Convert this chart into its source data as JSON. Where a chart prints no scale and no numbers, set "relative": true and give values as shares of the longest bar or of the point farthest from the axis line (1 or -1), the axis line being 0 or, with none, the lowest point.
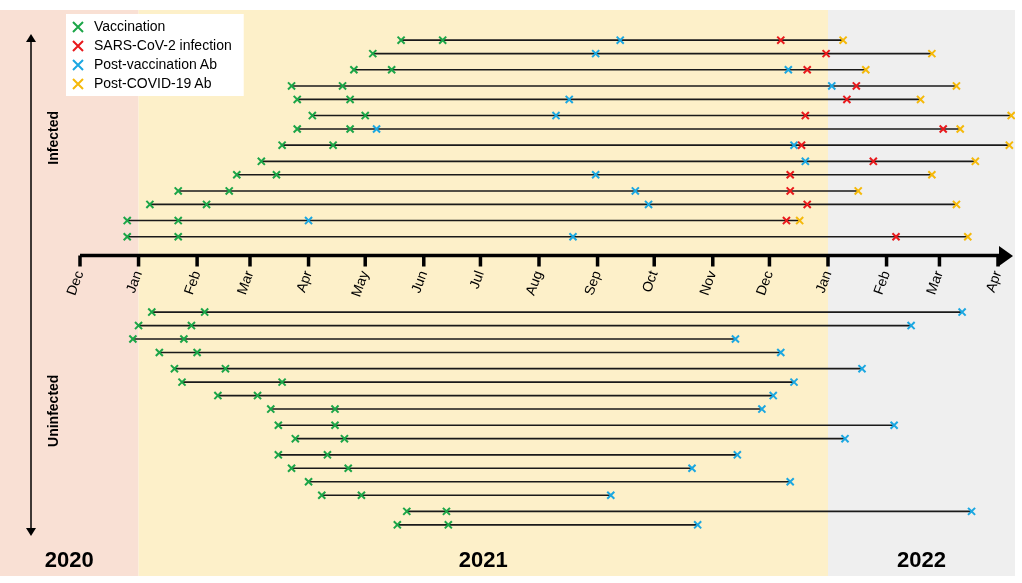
{
  "chart_data": {
    "type": "scatter",
    "relative": true,
    "legend": "top left",
    "annotations": [
      "Infected",
      "Uninfected"
    ],
    "xlim": [
      "2020-12-01",
      "2022-04-10"
    ],
    "xticks": [
      {
        "value": "2020-12-01",
        "label": "Dec"
      },
      {
        "value": "2021-01-01",
        "label": "Jan"
      },
      {
        "value": "2021-02-01",
        "label": "Feb"
      },
      {
        "value": "2021-03-01",
        "label": "Mar"
      },
      {
        "value": "2021-04-01",
        "label": "Apr"
      },
      {
        "value": "2021-05-01",
        "label": "May"
      },
      {
        "value": "2021-06-01",
        "label": "Jun"
      },
      {
        "value": "2021-07-01",
        "label": "Jul"
      },
      {
        "value": "2021-08-01",
        "label": "Aug"
      },
      {
        "value": "2021-09-01",
        "label": "Sep"
      },
      {
        "value": "2021-10-01",
        "label": "Oct"
      },
      {
        "value": "2021-11-01",
        "label": "Nov"
      },
      {
        "value": "2021-12-01",
        "label": "Dec"
      },
      {
        "value": "2022-01-01",
        "label": "Jan"
      },
      {
        "value": "2022-02-01",
        "label": "Feb"
      },
      {
        "value": "2022-03-01",
        "label": "Mar"
      },
      {
        "value": "2022-04-01",
        "label": "Apr"
      }
    ],
    "bands": [
      {
        "axis": "x",
        "from": "2020-12-01",
        "to": "2021-01-01",
        "label": "2020",
        "color": "#f9e0d4"
      },
      {
        "axis": "x",
        "from": "2021-01-01",
        "to": "2022-01-01",
        "label": "2021",
        "color": "#fdf0c9"
      },
      {
        "axis": "x",
        "from": "2022-01-01",
        "to": "2022-04-10",
        "label": "2022",
        "color": "#efefef"
      }
    ],
    "series": [
      {
        "type": "line",
        "color": "#1a1a1a",
        "marker": "none",
        "x": [
          "2021-05-20",
          "2022-01-09"
        ],
        "values": [
          0.8,
          0.8
        ]
      },
      {
        "type": "line",
        "color": "#1a1a1a",
        "marker": "none",
        "x": [
          "2021-05-05",
          "2022-02-25"
        ],
        "values": [
          0.75,
          0.75
        ]
      },
      {
        "type": "line",
        "color": "#1a1a1a",
        "marker": "none",
        "x": [
          "2021-04-25",
          "2022-01-21"
        ],
        "values": [
          0.69,
          0.69
        ]
      },
      {
        "type": "line",
        "color": "#1a1a1a",
        "marker": "none",
        "x": [
          "2021-03-23",
          "2022-03-10"
        ],
        "values": [
          0.63,
          0.63
        ]
      },
      {
        "type": "line",
        "color": "#1a1a1a",
        "marker": "none",
        "x": [
          "2021-03-26",
          "2022-02-19"
        ],
        "values": [
          0.58,
          0.58
        ]
      },
      {
        "type": "line",
        "color": "#1a1a1a",
        "marker": "none",
        "x": [
          "2021-04-03",
          "2022-04-08"
        ],
        "values": [
          0.52,
          0.52
        ]
      },
      {
        "type": "line",
        "color": "#1a1a1a",
        "marker": "none",
        "x": [
          "2021-03-26",
          "2022-03-12"
        ],
        "values": [
          0.47,
          0.47
        ]
      },
      {
        "type": "line",
        "color": "#1a1a1a",
        "marker": "none",
        "x": [
          "2021-03-18",
          "2022-04-07"
        ],
        "values": [
          0.41,
          0.41
        ]
      },
      {
        "type": "line",
        "color": "#1a1a1a",
        "marker": "none",
        "x": [
          "2021-03-07",
          "2022-03-20"
        ],
        "values": [
          0.35,
          0.35
        ]
      },
      {
        "type": "line",
        "color": "#1a1a1a",
        "marker": "none",
        "x": [
          "2021-02-22",
          "2022-02-25"
        ],
        "values": [
          0.3,
          0.3
        ]
      },
      {
        "type": "line",
        "color": "#1a1a1a",
        "marker": "none",
        "x": [
          "2021-01-22",
          "2022-01-17"
        ],
        "values": [
          0.24,
          0.24
        ]
      },
      {
        "type": "line",
        "color": "#1a1a1a",
        "marker": "none",
        "x": [
          "2021-01-07",
          "2022-03-10"
        ],
        "values": [
          0.19,
          0.19
        ]
      },
      {
        "type": "line",
        "color": "#1a1a1a",
        "marker": "none",
        "x": [
          "2020-12-26",
          "2021-12-17"
        ],
        "values": [
          0.13,
          0.13
        ]
      },
      {
        "type": "line",
        "color": "#1a1a1a",
        "marker": "none",
        "x": [
          "2020-12-26",
          "2022-03-16"
        ],
        "values": [
          0.07,
          0.07
        ]
      },
      {
        "type": "line",
        "color": "#1a1a1a",
        "marker": "none",
        "x": [
          "2021-01-08",
          "2022-03-13"
        ],
        "values": [
          -0.21,
          -0.21
        ]
      },
      {
        "type": "line",
        "color": "#1a1a1a",
        "marker": "none",
        "x": [
          "2021-01-01",
          "2022-02-14"
        ],
        "values": [
          -0.26,
          -0.26
        ]
      },
      {
        "type": "line",
        "color": "#1a1a1a",
        "marker": "none",
        "x": [
          "2020-12-29",
          "2021-11-13"
        ],
        "values": [
          -0.31,
          -0.31
        ]
      },
      {
        "type": "line",
        "color": "#1a1a1a",
        "marker": "none",
        "x": [
          "2021-01-12",
          "2021-12-07"
        ],
        "values": [
          -0.36,
          -0.36
        ]
      },
      {
        "type": "line",
        "color": "#1a1a1a",
        "marker": "none",
        "x": [
          "2021-01-20",
          "2022-01-19"
        ],
        "values": [
          -0.42,
          -0.42
        ]
      },
      {
        "type": "line",
        "color": "#1a1a1a",
        "marker": "none",
        "x": [
          "2021-01-24",
          "2021-12-14"
        ],
        "values": [
          -0.47,
          -0.47
        ]
      },
      {
        "type": "line",
        "color": "#1a1a1a",
        "marker": "none",
        "x": [
          "2021-02-12",
          "2021-12-03"
        ],
        "values": [
          -0.52,
          -0.52
        ]
      },
      {
        "type": "line",
        "color": "#1a1a1a",
        "marker": "none",
        "x": [
          "2021-03-12",
          "2021-11-27"
        ],
        "values": [
          -0.57,
          -0.57
        ]
      },
      {
        "type": "line",
        "color": "#1a1a1a",
        "marker": "none",
        "x": [
          "2021-03-16",
          "2022-02-05"
        ],
        "values": [
          -0.63,
          -0.63
        ]
      },
      {
        "type": "line",
        "color": "#1a1a1a",
        "marker": "none",
        "x": [
          "2021-03-25",
          "2022-01-10"
        ],
        "values": [
          -0.68,
          -0.68
        ]
      },
      {
        "type": "line",
        "color": "#1a1a1a",
        "marker": "none",
        "x": [
          "2021-03-16",
          "2021-11-14"
        ],
        "values": [
          -0.74,
          -0.74
        ]
      },
      {
        "type": "line",
        "color": "#1a1a1a",
        "marker": "none",
        "x": [
          "2021-03-23",
          "2021-10-21"
        ],
        "values": [
          -0.79,
          -0.79
        ]
      },
      {
        "type": "line",
        "color": "#1a1a1a",
        "marker": "none",
        "x": [
          "2021-04-01",
          "2021-12-12"
        ],
        "values": [
          -0.84,
          -0.84
        ]
      },
      {
        "type": "line",
        "color": "#1a1a1a",
        "marker": "none",
        "x": [
          "2021-04-08",
          "2021-09-08"
        ],
        "values": [
          -0.89,
          -0.89
        ]
      },
      {
        "type": "line",
        "color": "#1a1a1a",
        "marker": "none",
        "x": [
          "2021-05-23",
          "2022-03-18"
        ],
        "values": [
          -0.95,
          -0.95
        ]
      },
      {
        "type": "line",
        "color": "#1a1a1a",
        "marker": "none",
        "x": [
          "2021-05-18",
          "2021-10-24"
        ],
        "values": [
          -1,
          -1
        ]
      },
      {
        "name": "Vaccination",
        "color": "#1ca548",
        "marker": "cross",
        "x": [
          "2021-05-20",
          "2021-06-11",
          "2021-05-05",
          "2021-04-25",
          "2021-05-15",
          "2021-03-23",
          "2021-04-19",
          "2021-03-26",
          "2021-04-23",
          "2021-04-03",
          "2021-05-01",
          "2021-03-26",
          "2021-04-23",
          "2021-03-18",
          "2021-04-14",
          "2021-03-07",
          "2021-02-22",
          "2021-03-15",
          "2021-01-22",
          "2021-02-18",
          "2021-01-07",
          "2021-02-06",
          "2020-12-26",
          "2021-01-22",
          "2020-12-26",
          "2021-01-22",
          "2021-01-08",
          "2021-02-05",
          "2021-01-01",
          "2021-01-29",
          "2020-12-29",
          "2021-01-25",
          "2021-01-12",
          "2021-02-01",
          "2021-01-20",
          "2021-02-16",
          "2021-01-24",
          "2021-03-18",
          "2021-02-12",
          "2021-03-05",
          "2021-03-12",
          "2021-04-15",
          "2021-03-16",
          "2021-04-15",
          "2021-03-25",
          "2021-04-20",
          "2021-03-16",
          "2021-04-11",
          "2021-03-23",
          "2021-04-22",
          "2021-04-01",
          "2021-04-08",
          "2021-04-29",
          "2021-05-23",
          "2021-06-13",
          "2021-05-18",
          "2021-06-14"
        ],
        "values": [
          0.8,
          0.8,
          0.75,
          0.69,
          0.69,
          0.63,
          0.63,
          0.58,
          0.58,
          0.52,
          0.52,
          0.47,
          0.47,
          0.41,
          0.41,
          0.35,
          0.3,
          0.3,
          0.24,
          0.24,
          0.19,
          0.19,
          0.13,
          0.13,
          0.07,
          0.07,
          -0.21,
          -0.21,
          -0.26,
          -0.26,
          -0.31,
          -0.31,
          -0.36,
          -0.36,
          -0.42,
          -0.42,
          -0.47,
          -0.47,
          -0.52,
          -0.52,
          -0.57,
          -0.57,
          -0.63,
          -0.63,
          -0.68,
          -0.68,
          -0.74,
          -0.74,
          -0.79,
          -0.79,
          -0.84,
          -0.89,
          -0.89,
          -0.95,
          -0.95,
          -1,
          -1
        ]
      },
      {
        "name": "SARS-CoV-2 infection",
        "color": "#e8191c",
        "marker": "cross",
        "x": [
          "2021-12-07",
          "2021-12-31",
          "2021-12-21",
          "2022-01-16",
          "2022-01-11",
          "2021-12-20",
          "2022-03-03",
          "2021-12-18",
          "2022-01-25",
          "2021-12-12",
          "2021-12-12",
          "2021-12-21",
          "2021-12-10",
          "2022-02-06"
        ],
        "values": [
          0.8,
          0.75,
          0.69,
          0.63,
          0.58,
          0.52,
          0.47,
          0.41,
          0.35,
          0.3,
          0.24,
          0.19,
          0.13,
          0.07
        ]
      },
      {
        "name": "Post-vaccination Ab",
        "color": "#1ba7e1",
        "marker": "cross",
        "x": [
          "2021-09-13",
          "2021-08-31",
          "2021-12-11",
          "2022-01-03",
          "2021-08-17",
          "2021-08-10",
          "2021-05-07",
          "2021-12-14",
          "2021-12-20",
          "2021-08-31",
          "2021-09-21",
          "2021-09-28",
          "2021-04-01",
          "2021-08-19",
          "2022-03-13",
          "2022-02-14",
          "2021-11-13",
          "2021-12-07",
          "2022-01-19",
          "2021-12-14",
          "2021-12-03",
          "2021-11-27",
          "2022-02-05",
          "2022-01-10",
          "2021-11-14",
          "2021-10-21",
          "2021-12-12",
          "2021-09-08",
          "2022-03-18",
          "2021-10-24"
        ],
        "values": [
          0.8,
          0.75,
          0.69,
          0.63,
          0.58,
          0.52,
          0.47,
          0.41,
          0.35,
          0.3,
          0.24,
          0.19,
          0.13,
          0.07,
          -0.21,
          -0.26,
          -0.31,
          -0.36,
          -0.42,
          -0.47,
          -0.52,
          -0.57,
          -0.63,
          -0.68,
          -0.74,
          -0.79,
          -0.84,
          -0.89,
          -0.95,
          -1
        ]
      },
      {
        "name": "Post-COVID-19 Ab",
        "color": "#f5b90a",
        "marker": "cross",
        "x": [
          "2022-01-09",
          "2022-02-25",
          "2022-01-21",
          "2022-03-10",
          "2022-02-19",
          "2022-04-08",
          "2022-03-12",
          "2022-04-07",
          "2022-03-20",
          "2022-02-25",
          "2022-01-17",
          "2022-03-10",
          "2021-12-17",
          "2022-03-16"
        ],
        "values": [
          0.8,
          0.75,
          0.69,
          0.63,
          0.58,
          0.52,
          0.47,
          0.41,
          0.35,
          0.3,
          0.24,
          0.19,
          0.13,
          0.07
        ]
      }
    ]
  }
}
